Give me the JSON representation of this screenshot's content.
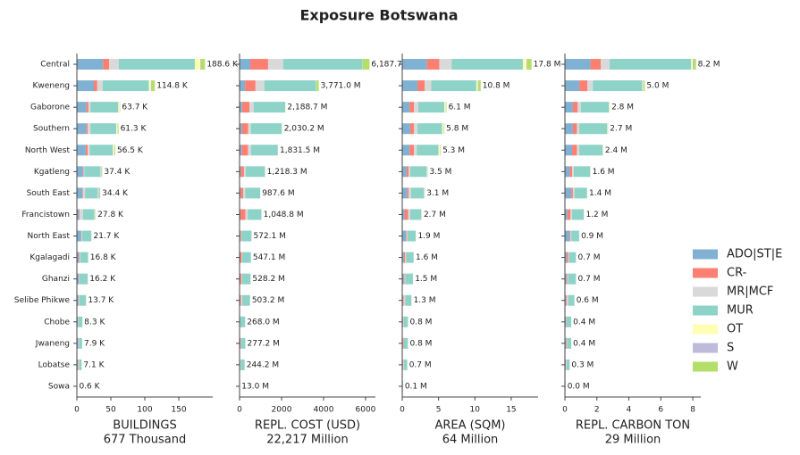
{
  "title": "Exposure Botswana",
  "chart_data": [
    {
      "type": "barh",
      "xlabel": [
        "BUILDINGS",
        "677 Thousand"
      ],
      "categories": [
        "Central",
        "Kweneng",
        "Gaborone",
        "Southern",
        "North West",
        "Kgatleng",
        "South East",
        "Francistown",
        "North East",
        "Kgalagadi",
        "Ghanzi",
        "Selibe Phikwe",
        "Chobe",
        "Jwaneng",
        "Lobatse",
        "Sowa"
      ],
      "xlim": [
        0,
        200
      ],
      "xticks": [
        0,
        50,
        100,
        150
      ],
      "series": [
        {
          "name": "ADO|ST|E",
          "color": "#80b1d3",
          "values": [
            38.6,
            25,
            14,
            14,
            13,
            9,
            8,
            3,
            6,
            3,
            3,
            2,
            1.5,
            2,
            1.5,
            0.1
          ]
        },
        {
          "name": "CR-",
          "color": "#fb8072",
          "values": [
            9,
            5,
            3,
            2,
            3,
            1,
            1,
            1,
            0.5,
            1,
            0.5,
            0.5,
            0.3,
            0.3,
            0.5,
            0.05
          ]
        },
        {
          "name": "MR|MCF",
          "color": "#d9d9d9",
          "values": [
            14,
            8,
            3,
            4,
            3,
            1,
            3,
            5,
            1,
            1,
            0.5,
            1,
            0.5,
            1,
            1.5,
            0.05
          ]
        },
        {
          "name": "MUR",
          "color": "#8dd3c7",
          "values": [
            112,
            68,
            41,
            38,
            34,
            24,
            19,
            17,
            13.7,
            11.5,
            12,
            10,
            5.8,
            4.4,
            3.4,
            0.35
          ]
        },
        {
          "name": "OT",
          "color": "#ffffb3",
          "values": [
            8,
            3,
            2,
            2,
            2,
            1,
            1,
            1,
            0.3,
            0.2,
            0.1,
            0.1,
            0.1,
            0.1,
            0.1,
            0.02
          ]
        },
        {
          "name": "S",
          "color": "#bebada",
          "values": [
            1,
            1,
            0.5,
            0.5,
            0.5,
            1,
            2,
            0.5,
            0.1,
            0,
            0,
            0.05,
            0.05,
            0.05,
            0.05,
            0.01
          ]
        },
        {
          "name": "W",
          "color": "#b3de69",
          "values": [
            6,
            4.8,
            0.2,
            0.8,
            1,
            0.4,
            0.4,
            0.3,
            0.1,
            0.1,
            0.1,
            0.05,
            0.05,
            0.05,
            0.05,
            0.02
          ]
        }
      ],
      "totals": [
        188.6,
        114.8,
        63.7,
        61.3,
        56.5,
        37.4,
        34.4,
        27.8,
        21.7,
        16.8,
        16.2,
        13.7,
        8.3,
        7.9,
        7.1,
        0.6
      ],
      "total_labels": [
        "188.6 K",
        "114.8 K",
        "63.7 K",
        "61.3 K",
        "56.5 K",
        "37.4 K",
        "34.4 K",
        "27.8 K",
        "21.7 K",
        "16.8 K",
        "16.2 K",
        "13.7 K",
        "8.3 K",
        "7.9 K",
        "7.1 K",
        "0.6 K"
      ]
    },
    {
      "type": "barh",
      "xlabel": [
        "REPL. COST (USD)",
        "22,217 Million"
      ],
      "xlim": [
        0,
        6470
      ],
      "xticks": [
        0,
        2000,
        4000,
        6000
      ],
      "series": [
        {
          "name": "ADO|ST|E",
          "color": "#80b1d3",
          "values": [
            510,
            260,
            120,
            110,
            100,
            60,
            50,
            40,
            30,
            20,
            20,
            20,
            10,
            15,
            10,
            1
          ]
        },
        {
          "name": "CR-",
          "color": "#fb8072",
          "values": [
            850,
            500,
            350,
            300,
            300,
            150,
            120,
            240,
            40,
            80,
            60,
            40,
            20,
            30,
            20,
            2
          ]
        },
        {
          "name": "MR|MCF",
          "color": "#d9d9d9",
          "values": [
            720,
            420,
            200,
            130,
            150,
            80,
            100,
            110,
            20,
            30,
            30,
            60,
            10,
            20,
            30,
            1
          ]
        },
        {
          "name": "MUR",
          "color": "#8dd3c7",
          "values": [
            3760.7,
            2470,
            1500,
            1470,
            1270,
            920,
            710,
            650,
            478,
            413,
            414,
            380,
            226,
            210,
            182,
            8.8
          ]
        },
        {
          "name": "OT",
          "color": "#ffffb3",
          "values": [
            5,
            10,
            10,
            10,
            5,
            4,
            3,
            4,
            2,
            2,
            2,
            2,
            1,
            1,
            1,
            0.1
          ]
        },
        {
          "name": "S",
          "color": "#bebada",
          "values": [
            2,
            5,
            3.7,
            5.2,
            2.5,
            2.3,
            2.6,
            2.8,
            1.1,
            1.1,
            1.2,
            0.7,
            0.5,
            0.6,
            0.6,
            0.05
          ]
        },
        {
          "name": "W",
          "color": "#b3de69",
          "values": [
            340,
            106,
            5,
            5,
            4,
            2,
            2,
            2,
            1,
            1,
            1,
            0.5,
            0.5,
            0.6,
            0.6,
            0.05
          ]
        }
      ],
      "totals": [
        6187.7,
        3771.0,
        2188.7,
        2030.2,
        1831.5,
        1218.3,
        987.6,
        1048.8,
        572.1,
        547.1,
        528.2,
        503.2,
        268.0,
        277.2,
        244.2,
        13.0
      ],
      "total_labels": [
        "6,187.7 M",
        "3,771.0 M",
        "2,188.7 M",
        "2,030.2 M",
        "1,831.5 M",
        "1,218.3 M",
        "987.6 M",
        "1,048.8 M",
        "572.1 M",
        "547.1 M",
        "528.2 M",
        "503.2 M",
        "268.0 M",
        "277.2 M",
        "244.2 M",
        "13.0 M"
      ]
    },
    {
      "type": "barh",
      "xlabel": [
        "AREA (SQM)",
        "64 Million"
      ],
      "xlim": [
        0,
        18.7
      ],
      "xticks": [
        0,
        5,
        10,
        15
      ],
      "series": [
        {
          "name": "ADO|ST|E",
          "color": "#80b1d3",
          "values": [
            3.4,
            2.1,
            1.0,
            1.1,
            1.0,
            0.6,
            0.7,
            0.3,
            0.5,
            0.2,
            0.2,
            0.1,
            0.1,
            0.1,
            0.1,
            0.01
          ]
        },
        {
          "name": "CR-",
          "color": "#fb8072",
          "values": [
            1.7,
            1.0,
            0.6,
            0.5,
            0.6,
            0.3,
            0.2,
            0.5,
            0.1,
            0.2,
            0.1,
            0.1,
            0.05,
            0.1,
            0.05,
            0.01
          ]
        },
        {
          "name": "MR|MCF",
          "color": "#d9d9d9",
          "values": [
            1.7,
            0.9,
            0.6,
            0.5,
            0.4,
            0.2,
            0.3,
            0.3,
            0.1,
            0.1,
            0.1,
            0.2,
            0.05,
            0.05,
            0.1,
            0.01
          ]
        },
        {
          "name": "MUR",
          "color": "#8dd3c7",
          "values": [
            9.8,
            6.2,
            3.6,
            3.4,
            3.0,
            2.3,
            1.8,
            1.5,
            1.15,
            1.07,
            1.07,
            0.87,
            0.58,
            0.53,
            0.43,
            0.067
          ]
        },
        {
          "name": "OT",
          "color": "#ffffb3",
          "values": [
            0.5,
            0.2,
            0.2,
            0.2,
            0.2,
            0.05,
            0.05,
            0.05,
            0.03,
            0.02,
            0.02,
            0.02,
            0.01,
            0.01,
            0.01,
            0.001
          ]
        },
        {
          "name": "S",
          "color": "#bebada",
          "values": [
            0.1,
            0.1,
            0.05,
            0.05,
            0.05,
            0.03,
            0.03,
            0.03,
            0.01,
            0.005,
            0.005,
            0.005,
            0.005,
            0.005,
            0.005,
            0.001
          ]
        },
        {
          "name": "W",
          "color": "#b3de69",
          "values": [
            0.6,
            0.3,
            0.05,
            0.05,
            0.05,
            0.02,
            0.02,
            0.02,
            0.01,
            0.005,
            0.005,
            0.005,
            0.005,
            0.005,
            0.005,
            0.001
          ]
        }
      ],
      "totals": [
        17.8,
        10.8,
        6.1,
        5.8,
        5.3,
        3.5,
        3.1,
        2.7,
        1.9,
        1.6,
        1.5,
        1.3,
        0.8,
        0.8,
        0.7,
        0.1
      ],
      "total_labels": [
        "17.8 M",
        "10.8 M",
        "6.1 M",
        "5.8 M",
        "5.3 M",
        "3.5 M",
        "3.1 M",
        "2.7 M",
        "1.9 M",
        "1.6 M",
        "1.5 M",
        "1.3 M",
        "0.8 M",
        "0.8 M",
        "0.7 M",
        "0.1 M"
      ]
    },
    {
      "type": "barh",
      "xlabel": [
        "REPL. CARBON TON",
        "29 Million"
      ],
      "xlim": [
        0,
        8.5
      ],
      "xticks": [
        0,
        2,
        4,
        6,
        8
      ],
      "series": [
        {
          "name": "ADO|ST|E",
          "color": "#80b1d3",
          "values": [
            1.6,
            0.9,
            0.5,
            0.5,
            0.45,
            0.3,
            0.4,
            0.15,
            0.3,
            0.1,
            0.1,
            0.05,
            0.05,
            0.05,
            0.04,
            0.01
          ]
        },
        {
          "name": "CR-",
          "color": "#fb8072",
          "values": [
            0.65,
            0.5,
            0.3,
            0.25,
            0.3,
            0.15,
            0.1,
            0.2,
            0.05,
            0.1,
            0.05,
            0.05,
            0.03,
            0.05,
            0.02,
            0.005
          ]
        },
        {
          "name": "MR|MCF",
          "color": "#d9d9d9",
          "values": [
            0.55,
            0.35,
            0.2,
            0.15,
            0.15,
            0.1,
            0.1,
            0.1,
            0.05,
            0.05,
            0.05,
            0.1,
            0.02,
            0.03,
            0.04,
            0.005
          ]
        },
        {
          "name": "MUR",
          "color": "#8dd3c7",
          "values": [
            5.1,
            3.1,
            1.75,
            1.75,
            1.46,
            1.03,
            0.78,
            0.73,
            0.49,
            0.44,
            0.49,
            0.39,
            0.295,
            0.265,
            0.196,
            0.02
          ]
        },
        {
          "name": "OT",
          "color": "#ffffb3",
          "values": [
            0.1,
            0.05,
            0.03,
            0.03,
            0.02,
            0.01,
            0.01,
            0.01,
            0.005,
            0.005,
            0.005,
            0.005,
            0.003,
            0.003,
            0.002,
            0
          ]
        },
        {
          "name": "S",
          "color": "#bebada",
          "values": [
            0.05,
            0.03,
            0.01,
            0.01,
            0.01,
            0.005,
            0.005,
            0.005,
            0.0025,
            0.0025,
            0.0025,
            0.0025,
            0.001,
            0.001,
            0.001,
            0
          ]
        },
        {
          "name": "W",
          "color": "#b3de69",
          "values": [
            0.15,
            0.07,
            0.01,
            0.01,
            0.01,
            0.005,
            0.005,
            0.005,
            0.0025,
            0.0025,
            0.0025,
            0.0025,
            0.001,
            0.001,
            0.001,
            0
          ]
        }
      ],
      "totals": [
        8.2,
        5.0,
        2.8,
        2.7,
        2.4,
        1.6,
        1.4,
        1.2,
        0.9,
        0.7,
        0.7,
        0.6,
        0.4,
        0.4,
        0.3,
        0.04
      ],
      "total_labels": [
        "8.2 M",
        "5.0 M",
        "2.8 M",
        "2.7 M",
        "2.4 M",
        "1.6 M",
        "1.4 M",
        "1.2 M",
        "0.9 M",
        "0.7 M",
        "0.7 M",
        "0.6 M",
        "0.4 M",
        "0.4 M",
        "0.3 M",
        "0.0 M"
      ]
    }
  ]
}
